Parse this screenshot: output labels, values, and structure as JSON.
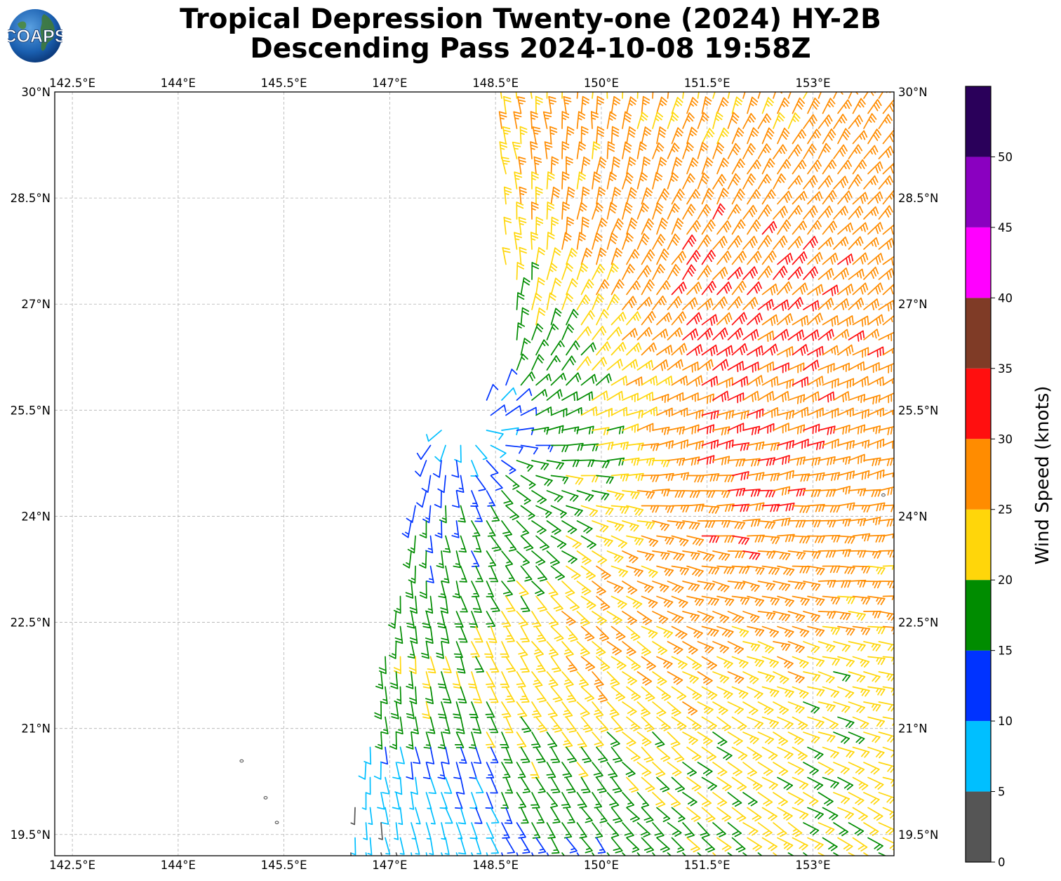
{
  "header": {
    "logo_text": "COAPS",
    "title_line1": "Tropical Depression Twenty-one (2024) HY-2B",
    "title_line2": "Descending Pass 2024-10-08 19:58Z"
  },
  "map": {
    "lon_range": [
      142.25,
      154.15
    ],
    "lat_range": [
      19.2,
      30.0
    ],
    "lon_ticks": [
      142.5,
      144,
      145.5,
      147,
      148.5,
      150,
      151.5,
      153
    ],
    "lon_tick_labels": [
      "142.5°E",
      "144°E",
      "145.5°E",
      "147°E",
      "148.5°E",
      "150°E",
      "151.5°E",
      "153°E"
    ],
    "lat_ticks": [
      30,
      28.5,
      27,
      25.5,
      24,
      22.5,
      21,
      19.5
    ],
    "lat_tick_labels": [
      "30°N",
      "28.5°N",
      "27°N",
      "25.5°N",
      "24°N",
      "22.5°N",
      "21°N",
      "19.5°N"
    ],
    "grid": true,
    "islands": [
      {
        "lon": 144.9,
        "lat": 20.54
      },
      {
        "lon": 145.24,
        "lat": 20.02
      },
      {
        "lon": 145.4,
        "lat": 19.67
      },
      {
        "lon": 154.0,
        "lat": 24.3
      }
    ]
  },
  "wind_field": {
    "center": {
      "lon": 148.1,
      "lat": 25.35
    },
    "colorbar_key_knots": [
      0,
      5,
      10,
      15,
      20,
      25,
      30,
      35,
      40,
      45,
      50
    ]
  },
  "colorbar": {
    "label": "Wind Speed (knots)",
    "bins": [
      {
        "min": 0,
        "max": 5,
        "color": "#555555"
      },
      {
        "min": 5,
        "max": 10,
        "color": "#00BFFF"
      },
      {
        "min": 10,
        "max": 15,
        "color": "#0033FF"
      },
      {
        "min": 15,
        "max": 20,
        "color": "#008C00"
      },
      {
        "min": 20,
        "max": 25,
        "color": "#FFD60A"
      },
      {
        "min": 25,
        "max": 30,
        "color": "#FF8C00"
      },
      {
        "min": 30,
        "max": 35,
        "color": "#FF0F0F"
      },
      {
        "min": 35,
        "max": 40,
        "color": "#7F3B26"
      },
      {
        "min": 40,
        "max": 45,
        "color": "#FF00FF"
      },
      {
        "min": 45,
        "max": 50,
        "color": "#8A00C0"
      },
      {
        "min": 50,
        "max": 55,
        "color": "#2A005A"
      }
    ],
    "tick_values": [
      0,
      5,
      10,
      15,
      20,
      25,
      30,
      35,
      40,
      45,
      50
    ],
    "tick_labels": [
      "0",
      "5",
      "10",
      "15",
      "20",
      "25",
      "30",
      "35",
      "40",
      "45",
      "50"
    ]
  }
}
